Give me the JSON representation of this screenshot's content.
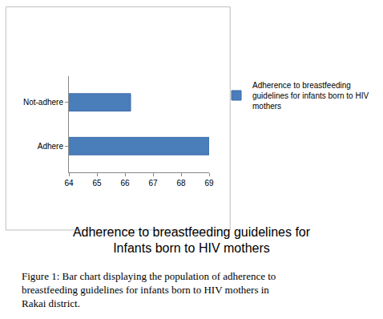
{
  "chart_data": {
    "type": "bar",
    "orientation": "horizontal",
    "title": "Adherence to breastfeeding guidelines for Infants born to HIV mothers",
    "categories": [
      "Adhere",
      "Not-adhere"
    ],
    "series": [
      {
        "name": "Adherence to breastfeeding guidelines for infants born to HIV mothers",
        "color": "#4a7ebb",
        "values": [
          69,
          66.2
        ]
      }
    ],
    "xlim": [
      64,
      69
    ],
    "xticks": [
      64,
      65,
      66,
      67,
      68,
      69
    ],
    "grid": false,
    "legend": "right",
    "annotations": [
      "Figure 1: Bar chart displaying the population of adherence to breastfeeding guidelines for infants born to HIV mothers in Rakai district."
    ]
  }
}
